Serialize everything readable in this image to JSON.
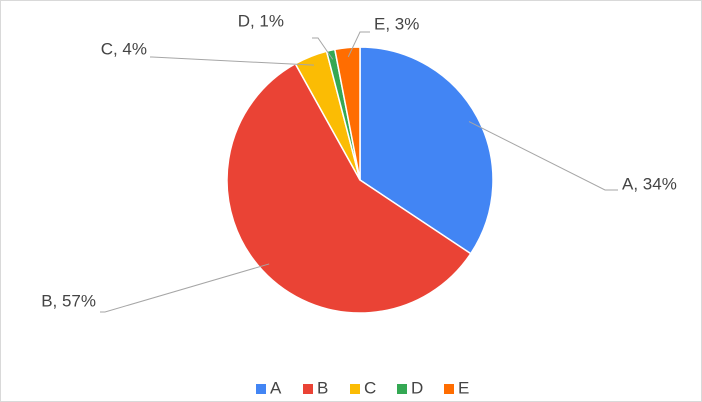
{
  "chart_data": {
    "type": "pie",
    "categories": [
      "A",
      "B",
      "C",
      "D",
      "E"
    ],
    "values": [
      34,
      57,
      4,
      1,
      3
    ],
    "value_labels": [
      "A, 34%",
      "B, 57%",
      "C, 4%",
      "D, 1%",
      "E, 3%"
    ],
    "colors": [
      "#4285f4",
      "#ea4335",
      "#fbbc04",
      "#34a853",
      "#ff6d01"
    ],
    "legend": "bottom"
  }
}
